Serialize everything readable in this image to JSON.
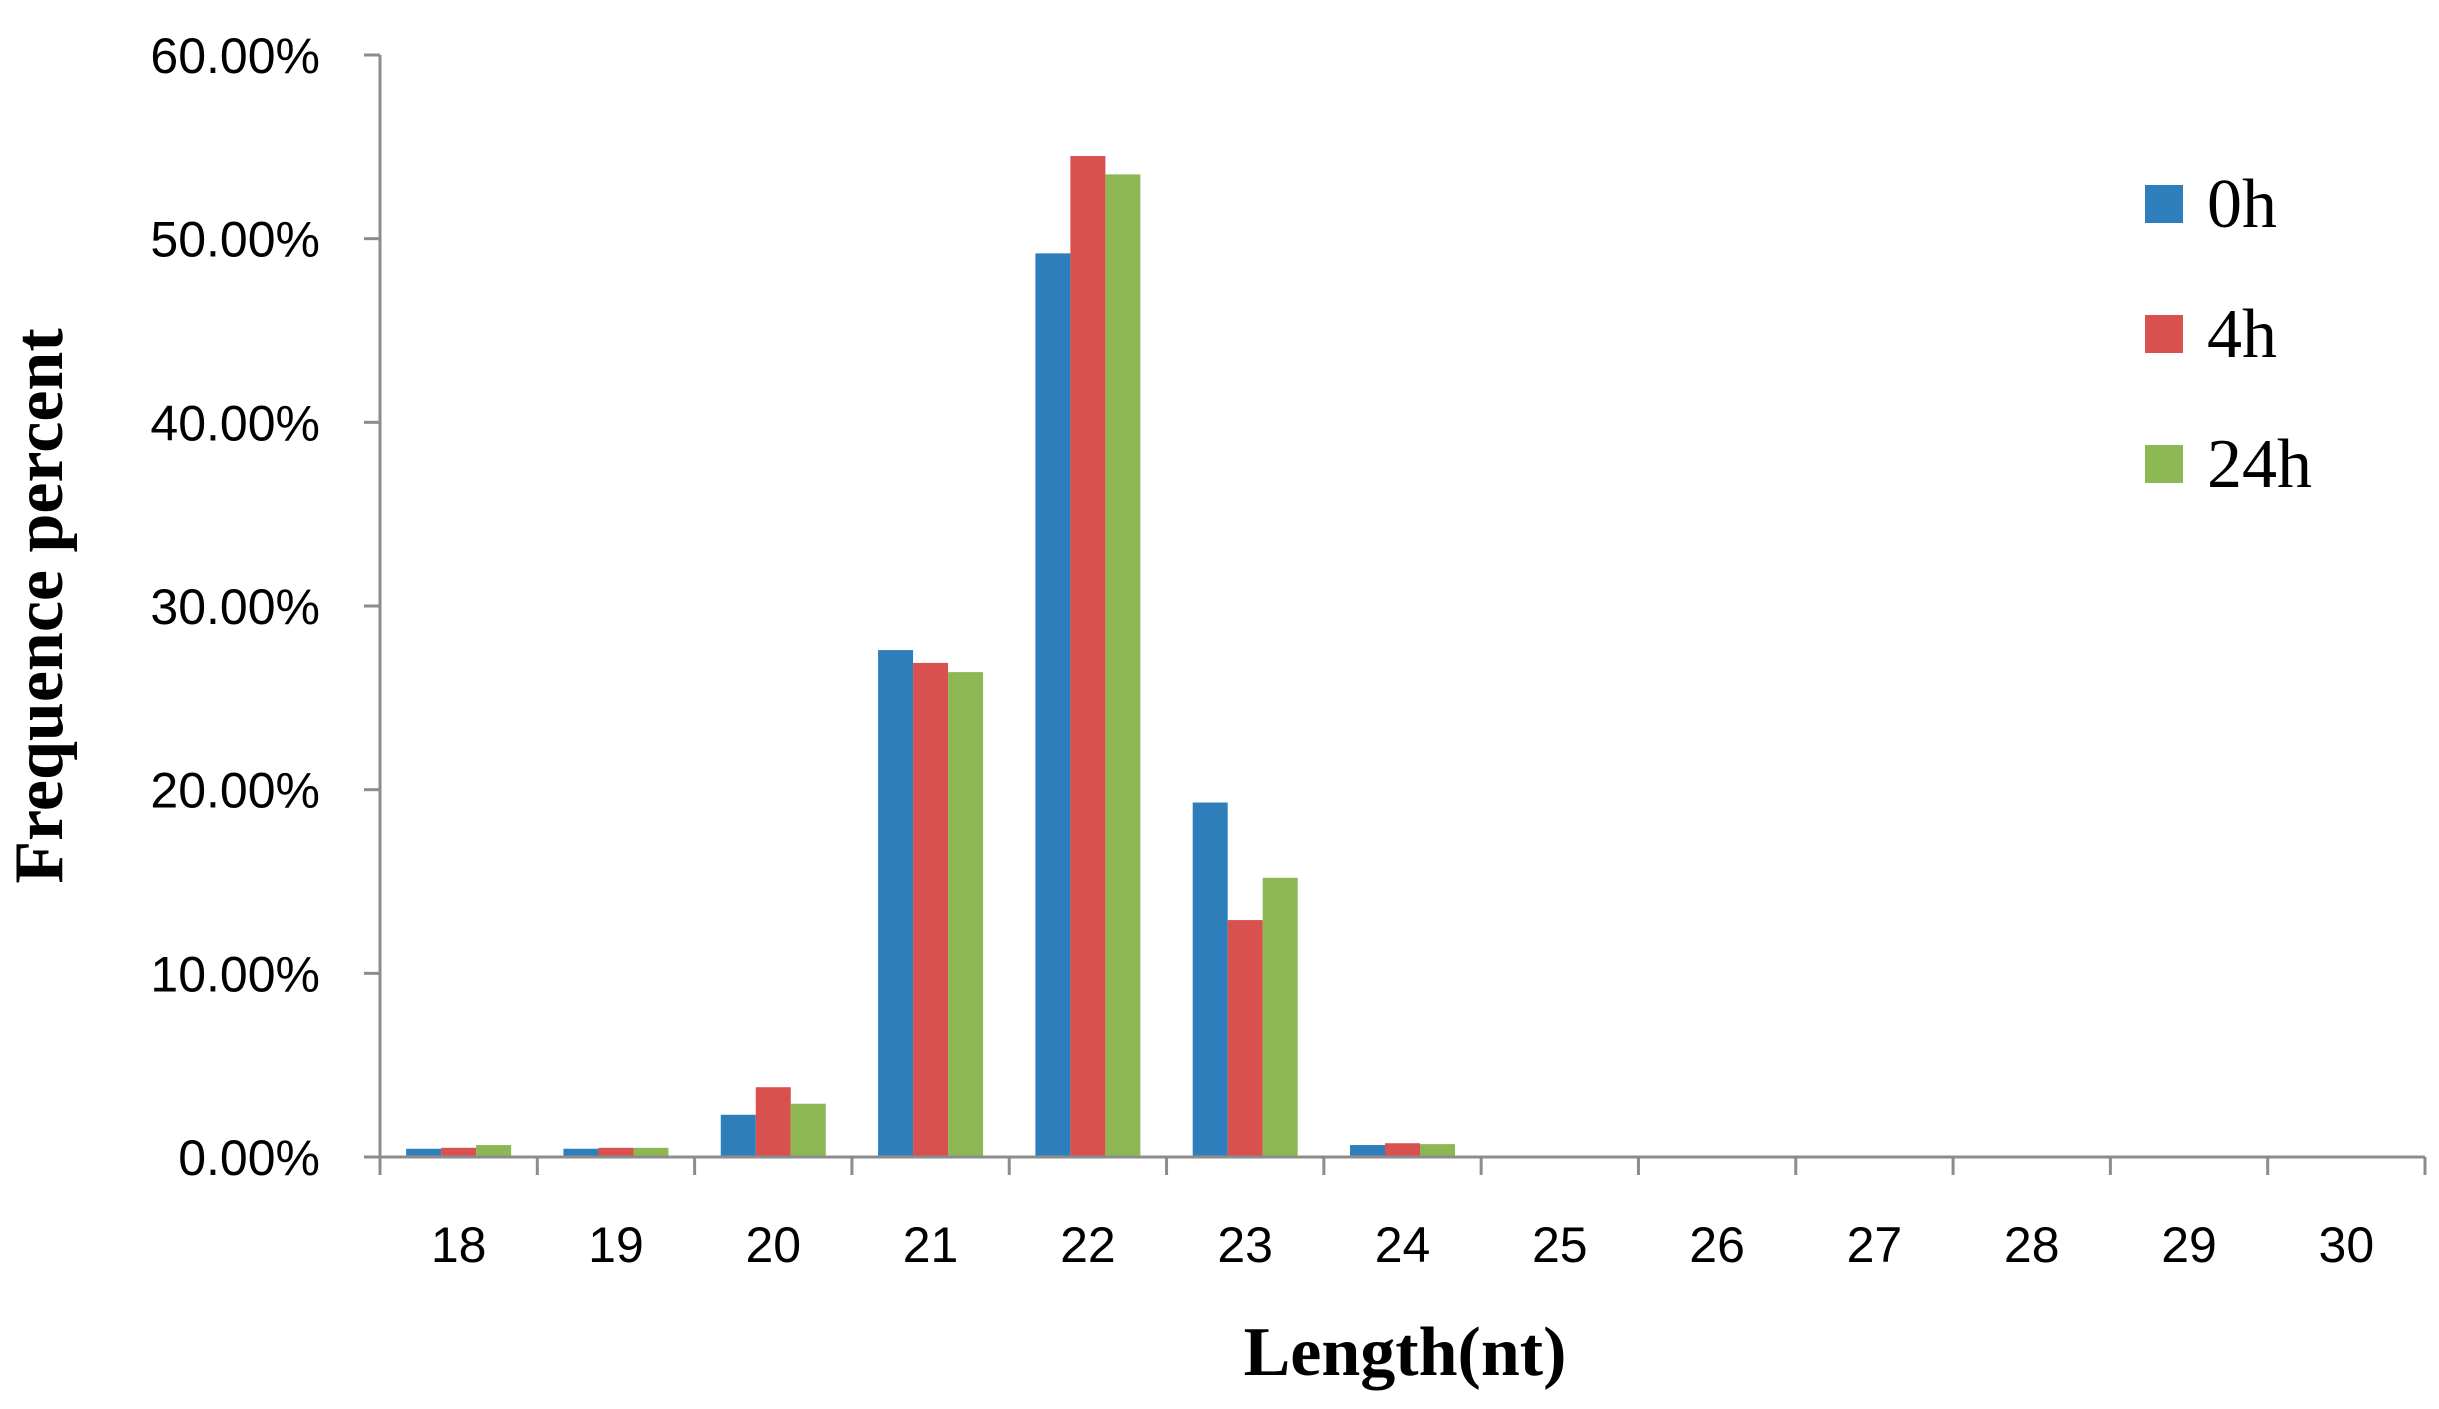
{
  "chart_data": {
    "type": "bar",
    "categories": [
      "18",
      "19",
      "20",
      "21",
      "22",
      "23",
      "24",
      "25",
      "26",
      "27",
      "28",
      "29",
      "30"
    ],
    "series": [
      {
        "name": "0h",
        "color": "#2E7EBB",
        "values": [
          0.45,
          0.45,
          2.3,
          27.6,
          49.2,
          19.3,
          0.65,
          0,
          0,
          0,
          0,
          0,
          0
        ]
      },
      {
        "name": "4h",
        "color": "#D9514E",
        "values": [
          0.5,
          0.5,
          3.8,
          26.9,
          54.5,
          12.9,
          0.75,
          0,
          0,
          0,
          0,
          0,
          0
        ]
      },
      {
        "name": "24h",
        "color": "#8DB752",
        "values": [
          0.65,
          0.5,
          2.9,
          26.4,
          53.5,
          15.2,
          0.7,
          0,
          0,
          0,
          0,
          0,
          0
        ]
      }
    ],
    "ylim": [
      0,
      60
    ],
    "yticks": [
      "0.00%",
      "10.00%",
      "20.00%",
      "30.00%",
      "40.00%",
      "50.00%",
      "60.00%"
    ],
    "xlabel": "Length(nt)",
    "ylabel": "Frequence percent",
    "legend_position": "top-right",
    "grid": false
  }
}
